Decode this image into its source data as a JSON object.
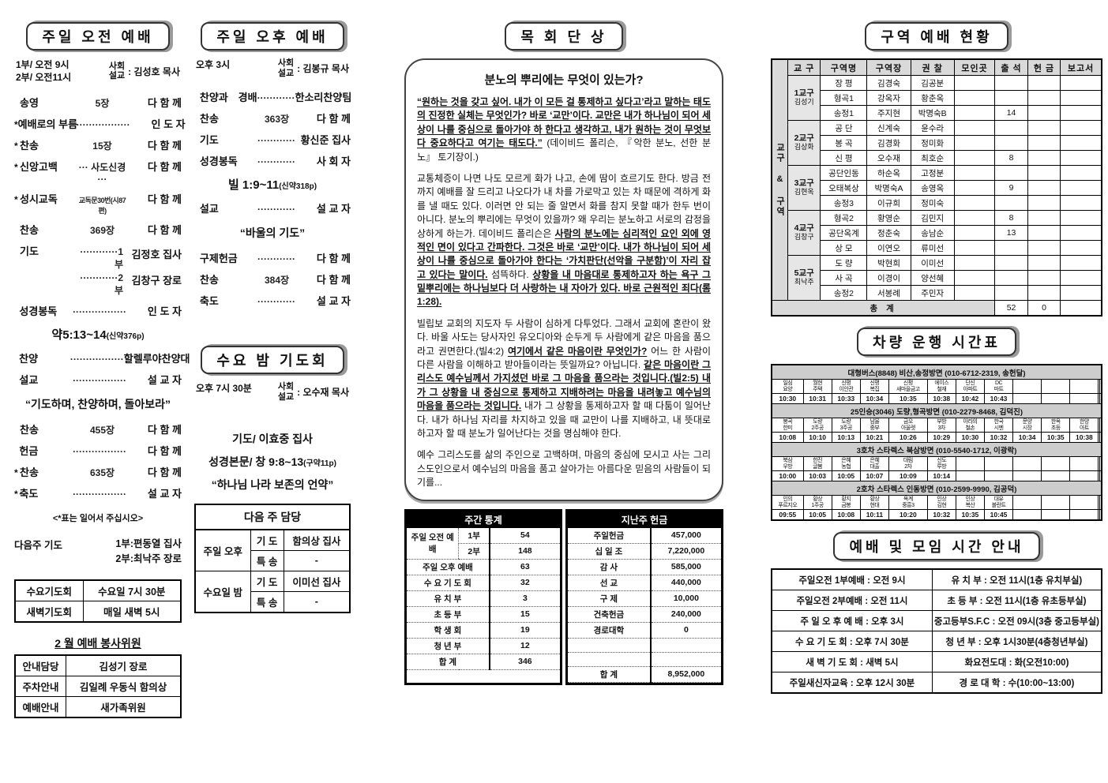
{
  "morning": {
    "title": "주일 오전 예배",
    "time1": "1부/ 오전 9시",
    "time2": "2부/ 오전11시",
    "role1": "사회",
    "role2": "설교",
    "leader": ": 김성호 목사",
    "items": [
      {
        "t": "r",
        "l": "송영",
        "m": "5장",
        "r": "다 함 께"
      },
      {
        "t": "r",
        "s": true,
        "l": "예배로의 부름",
        "m": "·················",
        "r": "인 도 자"
      },
      {
        "t": "r",
        "s": true,
        "l": "찬송",
        "m": "15장",
        "r": "다 함 께"
      },
      {
        "t": "r",
        "s": true,
        "l": "신앙고백",
        "m": "··· 사도신경 ···",
        "r": "다 함 께"
      },
      {
        "t": "r",
        "s": true,
        "l": "성시교독",
        "m": "교독문30번(시87편)",
        "sm": true,
        "r": "다 함 께"
      },
      {
        "t": "r",
        "l": "찬송",
        "m": "369장",
        "r": "다 함 께"
      },
      {
        "t": "r2",
        "l": "기도",
        "lines": [
          [
            "············1부",
            "김정호 집사"
          ],
          [
            "············2부",
            "김창구 장로"
          ]
        ]
      },
      {
        "t": "r",
        "l": "성경봉독",
        "m": "·················",
        "r": "인 도 자"
      },
      {
        "t": "c",
        "cls": "scrip",
        "text": "약5:13~14",
        "sub": "(신약376p)"
      },
      {
        "t": "r",
        "l": "찬양",
        "m": "·················",
        "r": "할렐루야찬양대"
      },
      {
        "t": "r",
        "l": "설교",
        "m": "·················",
        "r": "설 교 자"
      },
      {
        "t": "c",
        "cls": "sermon",
        "text": "“기도하며, 찬양하며, 돌아보라”"
      },
      {
        "t": "r",
        "l": "찬송",
        "m": "455장",
        "r": "다 함 께"
      },
      {
        "t": "r",
        "l": "헌금",
        "m": "·················",
        "r": "다 함 께"
      },
      {
        "t": "r",
        "s": true,
        "l": "찬송",
        "m": "635장",
        "r": "다 함 께"
      },
      {
        "t": "r",
        "s": true,
        "l": "축도",
        "m": "·················",
        "r": "설 교 자"
      },
      {
        "t": "c",
        "cls": "note",
        "text": "<*표는 일어서 주십시오>"
      },
      {
        "t": "next",
        "l": "다음주 기도",
        "lines": [
          "1부:편동열 집사",
          "2부:최낙주 장로"
        ]
      }
    ],
    "prayer_table": [
      [
        "수요기도회",
        "수요일 7시 30분"
      ],
      [
        "새벽기도회",
        "매일 새벽 5시"
      ]
    ],
    "volunteer_title": "2 월 예배 봉사위원",
    "volunteer_rows": [
      [
        "안내담당",
        "김성기 장로"
      ],
      [
        "주차안내",
        "김일례 우동식 함의상"
      ],
      [
        "예배안내",
        "새가족위원"
      ]
    ]
  },
  "afternoon": {
    "title": "주일 오후 예배",
    "time1": "오후 3시",
    "role1": "사회",
    "role2": "설교",
    "leader": ": 김봉규 목사",
    "items": [
      {
        "t": "r",
        "l": "찬양과 경배",
        "m": "············",
        "r": "한소리찬양팀"
      },
      {
        "t": "r",
        "l": "찬송",
        "m": "363장",
        "r": "다 함 께"
      },
      {
        "t": "r",
        "l": "기도",
        "m": "············",
        "r": "황신준 집사"
      },
      {
        "t": "r",
        "l": "성경봉독",
        "m": "············",
        "r": "사 회 자"
      },
      {
        "t": "c",
        "cls": "scrip",
        "text": "빌 1:9~11",
        "sub": "(신약318p)"
      },
      {
        "t": "r",
        "l": "설교",
        "m": "············",
        "r": "설 교 자"
      },
      {
        "t": "c",
        "cls": "sermon",
        "text": "“바울의 기도”"
      },
      {
        "t": "r",
        "l": "구제헌금",
        "m": "············",
        "r": "다 함 께"
      },
      {
        "t": "r",
        "l": "찬송",
        "m": "384장",
        "r": "다 함 께"
      },
      {
        "t": "r",
        "l": "축도",
        "m": "············",
        "r": "설 교 자"
      }
    ]
  },
  "wednesday": {
    "title": "수요 밤 기도회",
    "time1": "오후 7시 30분",
    "role1": "사회",
    "role2": "설교",
    "leader": ": 오수재 목사",
    "items": [
      {
        "t": "c",
        "cls": "wedline",
        "text": "기도/ 이효중 집사"
      },
      {
        "t": "c",
        "cls": "wedline",
        "text": "성경본문/ 창 9:8~13",
        "sub": "(구약11p)"
      },
      {
        "t": "c",
        "cls": "wedline",
        "text": "“하나님 나라 보존의 언약”"
      }
    ],
    "duty_title": "다음 주 담당",
    "duty_groups": [
      {
        "group": "주일 오후",
        "rows": [
          [
            "기 도",
            "함의상 집사"
          ],
          [
            "특 송",
            "-"
          ]
        ]
      },
      {
        "group": "수요일 밤",
        "rows": [
          [
            "기 도",
            "이미선 집사"
          ],
          [
            "특 송",
            "-"
          ]
        ]
      }
    ]
  },
  "essay": {
    "title": "목 회 단 상",
    "heading": "분노의 뿌리에는 무엇이 있는가?",
    "paras": [
      [
        {
          "x": "“원하는 것을 갖고 싶어. 내가 이 모든 걸 통제하고 싶다고’라고 말하는 태도의 진정한 실체는 무엇인가? 바로 ‘교만’이다. 교만은 내가 하나님이 되어 세상이 나를 중심으로 돌아가야 하 한다고 생각하고, 내가 원하는 것이 무엇보다 중요하다고 여기는 태도다.”",
          "b": true,
          "u": true
        },
        {
          "x": "  (데이비드 폴리슨, 『악한 분노, 선한 분노』 토기장이.)"
        }
      ],
      [
        {
          "x": "교통체증이 나면 나도 모르게 화가 나고, 손에 땀이 흐르기도 한다. 방금 전까지 예배를 잘 드리고 나오다가 내 차를 가로막고 있는 차 때문에 격하게 화를 낼 때도 있다. 이러면 안 되는 줄 알면서 화를 참지 못할 때가 한두 번이 아니다. 분노의 뿌리에는 무엇이 있을까? 왜 우리는 분노하고 서로의 감정을 상하게 하는가. 데이비드 폴리슨은 "
        },
        {
          "x": "사람의 분노에는 심리적인 요인 외에 영적인 면이 있다고 간파한다. 그것은 바로 ‘교만’이다. 내가 하나님이 되어 세상이 나를 중심으로 돌아가야 한다는 ‘가치판단(선악을 구분함)’이 자리 잡고 있다는 말이다.",
          "b": true,
          "u": true
        },
        {
          "x": " 섬뜩하다. "
        },
        {
          "x": "상황을 내 마음대로 통제하고자 하는 욕구 그 밑뿌리에는 하나님보다 더 사랑하는 내 자아가 있다. 바로 근원적인 죄다(롬1:28).",
          "b": true,
          "u": true
        }
      ],
      [
        {
          "x": "빌립보 교회의 지도자 두 사람이 심하게 다투었다. 그래서 교회에 혼란이 왔다. 바울 사도는 당사자인 유오디아와 순두게 두 사람에게 같은 마음을 품으라고 권면한다.(빌4:2) "
        },
        {
          "x": "여기에서 같은 마음이란 무엇인가?",
          "b": true,
          "u": true
        },
        {
          "x": " 어느 한 사람이 다른 사람을 이해하고 받아들이라는 뜻일까요? 아닙니다. "
        },
        {
          "x": "같은 마음이란 그리스도 예수님께서 가지셨던 바로 그 마음을 품으라는 것입니다.(빌2:5) 내가 그 상황을 내 중심으로 통제하고 지배하려는 마음을 내려놓고 예수님의 마음을 품으라는 것입니다.",
          "b": true,
          "u": true
        },
        {
          "x": " 내가 그 상황을 통제하고자 할 때 다툼이 일어난다. 내가 하나님 자리를 차지하고 있을 때 교만이 나를 지배하고, 내 뜻대로 하고자 할 때 분노가 일어난다는 것을 명심해야 한다."
        }
      ],
      [
        {
          "x": "예수 그리스도를 삶의 주인으로 고백하며, 마음의 중심에 모시고 사는 그리스도인으로서 예수님의 마음을 품고 살아가는 아름다운 믿음의 사람들이 되기를..."
        }
      ]
    ]
  },
  "stats": {
    "title": "주간 통계",
    "morning_label": "주일 오전 예배",
    "morning_rows": [
      [
        "1부",
        "54"
      ],
      [
        "2부",
        "148"
      ]
    ],
    "rows": [
      [
        "주일 오후 예배",
        "63"
      ],
      [
        "수 요 기 도 회",
        "32"
      ],
      [
        "유  치  부",
        "3"
      ],
      [
        "초  등  부",
        "15"
      ],
      [
        "학  생  회",
        "19"
      ],
      [
        "청  년  부",
        "12"
      ]
    ],
    "total_label": "합    계",
    "total": "346"
  },
  "offering": {
    "title": "지난주 헌금",
    "rows": [
      [
        "주일헌금",
        "457,000"
      ],
      [
        "십 일 조",
        "7,220,000"
      ],
      [
        "감    사",
        "585,000"
      ],
      [
        "선    교",
        "440,000"
      ],
      [
        "구    제",
        "10,000"
      ],
      [
        "건축헌금",
        "240,000"
      ],
      [
        "경로대학",
        "0"
      ],
      [
        "",
        ""
      ],
      [
        "",
        ""
      ]
    ],
    "total_label": "합    계",
    "total": "8,952,000"
  },
  "district": {
    "title": "구역 예배 현황",
    "side_label": "교구 & 구역",
    "headers": [
      "교 구",
      "구역명",
      "구역장",
      "권 찰",
      "모인곳",
      "출 석",
      "헌 금",
      "보고서"
    ],
    "groups": [
      {
        "gu": "1교구",
        "leader": "김성기",
        "rows": [
          [
            "장 평",
            "김경숙",
            "김공분",
            "",
            "",
            "",
            ""
          ],
          [
            "형곡1",
            "강옥자",
            "황춘옥",
            "",
            "",
            "",
            ""
          ],
          [
            "송정1",
            "주지현",
            "박명숙B",
            "",
            "14",
            "",
            ""
          ]
        ]
      },
      {
        "gu": "2교구",
        "leader": "김상화",
        "rows": [
          [
            "공 단",
            "신계숙",
            "윤수라",
            "",
            "",
            "",
            ""
          ],
          [
            "봉 곡",
            "김경화",
            "정미화",
            "",
            "",
            "",
            ""
          ],
          [
            "신 평",
            "오수재",
            "최호순",
            "",
            "8",
            "",
            ""
          ]
        ]
      },
      {
        "gu": "3교구",
        "leader": "김현옥",
        "rows": [
          [
            "공단인동",
            "하순옥",
            "고정분",
            "",
            "",
            "",
            ""
          ],
          [
            "오태복상",
            "박명숙A",
            "송영옥",
            "",
            "9",
            "",
            ""
          ],
          [
            "송정3",
            "이규희",
            "정미숙",
            "",
            "",
            "",
            ""
          ]
        ]
      },
      {
        "gu": "4교구",
        "leader": "김창구",
        "rows": [
          [
            "형곡2",
            "황영순",
            "김민지",
            "",
            "8",
            "",
            ""
          ],
          [
            "공단옥계",
            "정춘숙",
            "송남순",
            "",
            "13",
            "",
            ""
          ],
          [
            "상 모",
            "이연오",
            "류미선",
            "",
            "",
            "",
            ""
          ]
        ]
      },
      {
        "gu": "5교구",
        "leader": "최낙주",
        "rows": [
          [
            "도 량",
            "박현희",
            "이미선",
            "",
            "",
            "",
            ""
          ],
          [
            "사 곡",
            "이경이",
            "양선혜",
            "",
            "",
            "",
            ""
          ],
          [
            "송정2",
            "서봉례",
            "주민자",
            "",
            "",
            "",
            ""
          ]
        ]
      }
    ],
    "total_label": "총  계",
    "total_attendance": "52",
    "total_offering": "0",
    "total_report": ""
  },
  "bus": {
    "title": "차량 운행 시간표",
    "slots": 13,
    "routes": [
      {
        "name": "대형버스(8848) 비산,송정방면 (010-6712-2319, 송헌달)",
        "stops": [
          "일심 요양",
          "월현 주택",
          "신평 이안관",
          "신평 복집",
          "신평 새마을금고",
          "에이스 철재",
          "단신 아파트",
          "DC 마트"
        ],
        "times": [
          "10:30",
          "10:31",
          "10:33",
          "10:34",
          "10:35",
          "10:38",
          "10:42",
          "10:43"
        ]
      },
      {
        "name": "25인승(3046) 도량,형곡방면 (010-2279-8468, 김덕진)",
        "stops": [
          "봉곡 한미",
          "도량 2주공",
          "도량 3주공",
          "남율 중부",
          "금오 아울렛",
          "부방 3차",
          "아라의 철손",
          "한국 시멘",
          "문양 시장",
          "한옥 초등",
          "한양 아트"
        ],
        "times": [
          "10:08",
          "10:10",
          "10:13",
          "10:21",
          "10:26",
          "10:29",
          "10:30",
          "10:32",
          "10:34",
          "10:35",
          "10:38"
        ]
      },
      {
        "name": "3호차 스타렉스 북삼방면 (010-5540-1712, 이광락)",
        "stops": [
          "북삼 우방",
          "한진 글봄",
          "은혜 농협",
          "은혜 대출",
          "대림 2차",
          "신도 루방"
        ],
        "times": [
          "10:00",
          "10:03",
          "10:05",
          "10:07",
          "10:09",
          "10:14"
        ]
      },
      {
        "name": "2호차 스타렉스 인동방면 (010-2599-9990, 김공덕)",
        "stops": [
          "인의 푸르지오",
          "황상 1주공",
          "황지 금봉",
          "황상 현대",
          "옥계 중흥3",
          "인상 김현",
          "인상 복산",
          "대유 블란트"
        ],
        "times": [
          "09:55",
          "10:05",
          "10:08",
          "10:11",
          "10:20",
          "10:32",
          "10:35",
          "10:45"
        ]
      }
    ]
  },
  "guide": {
    "title": "예배 및 모임 시간 안내",
    "rows": [
      [
        "주일오전 1부예배 : 오전 9시",
        "유  치  부 : 오전 11시(1층 유치부실)"
      ],
      [
        "주일오전 2부예배 : 오전 11시",
        "초  등  부 : 오전 11시(1층 유초등부실)"
      ],
      [
        "주 일 오 후 예 배 : 오후 3시",
        "중고등부S.F.C : 오전 09시(3층 중고등부실)"
      ],
      [
        "수 요 기 도 회 : 오후 7시 30분",
        "청  년  부 : 오후 1시30분(4층청년부실)"
      ],
      [
        "새 벽 기 도 회 : 새벽 5시",
        "화요전도대 : 화(오전10:00)"
      ],
      [
        "주일새신자교육 : 오후 12시 30분",
        "경 로 대 학 : 수(10:00~13:00)"
      ]
    ]
  }
}
